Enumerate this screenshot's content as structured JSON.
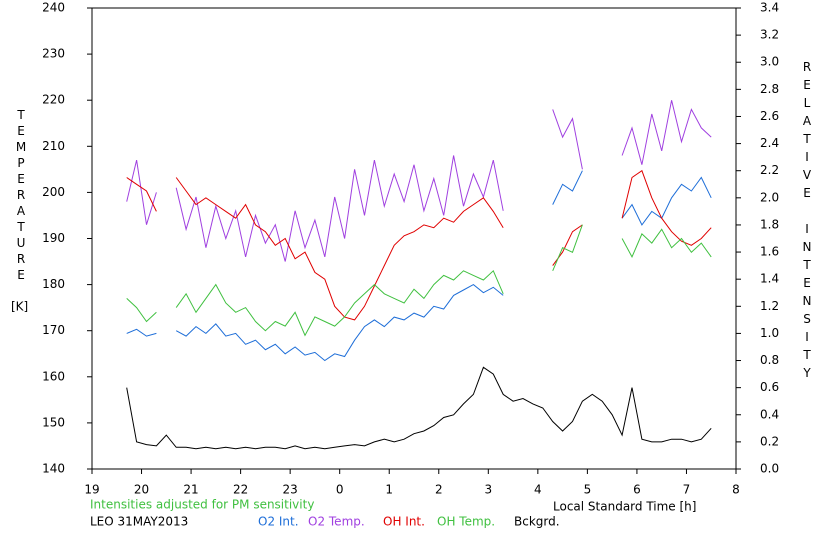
{
  "chart_data": {
    "type": "line",
    "y_label": "TEMPERATURE",
    "y_label_unit": "[K]",
    "y2_label": "RELATIVE INTENSITY",
    "x_label": "Local Standard Time [h]",
    "annotations": [
      "Intensities adjusted for PM sensitivity",
      "LEO 31MAY2013"
    ],
    "xlim": [
      19,
      32
    ],
    "xticks": [
      19,
      20,
      21,
      22,
      23,
      {
        "value": 24,
        "label": "0"
      },
      {
        "value": 25,
        "label": "1"
      },
      {
        "value": 26,
        "label": "2"
      },
      {
        "value": 27,
        "label": "3"
      },
      {
        "value": 28,
        "label": "4"
      },
      {
        "value": 29,
        "label": "5"
      },
      {
        "value": 30,
        "label": "6"
      },
      {
        "value": 31,
        "label": "7"
      },
      {
        "value": 32,
        "label": "8"
      }
    ],
    "ylim": [
      140,
      240
    ],
    "yticks": [
      140,
      150,
      160,
      170,
      180,
      190,
      200,
      210,
      220,
      230,
      240
    ],
    "y2lim": [
      0,
      3.4
    ],
    "y2ticks": [
      {
        "value": 0,
        "label": "0.0"
      },
      0.2,
      0.4,
      0.6,
      0.8,
      {
        "value": 1,
        "label": "1.0"
      },
      1.2,
      1.4,
      1.6,
      1.8,
      {
        "value": 2,
        "label": "2.0"
      },
      2.2,
      2.4,
      2.6,
      2.8,
      {
        "value": 3,
        "label": "3.0"
      },
      3.2,
      3.4
    ],
    "x": [
      19.7,
      19.9,
      20.1,
      20.3,
      20.5,
      20.7,
      20.9,
      21.1,
      21.3,
      21.5,
      21.7,
      21.9,
      22.1,
      22.3,
      22.5,
      22.7,
      22.9,
      23.1,
      23.3,
      23.5,
      23.7,
      23.9,
      24.1,
      24.3,
      24.5,
      24.7,
      24.9,
      25.1,
      25.3,
      25.5,
      25.7,
      25.9,
      26.1,
      26.3,
      26.5,
      26.7,
      26.9,
      27.1,
      27.3,
      27.5,
      27.7,
      27.9,
      28.1,
      28.3,
      28.5,
      28.7,
      28.9,
      29.1,
      29.3,
      29.5,
      29.7,
      29.9,
      30.1,
      30.3,
      30.5,
      30.7,
      30.9,
      31.1,
      31.3,
      31.5
    ],
    "series": [
      {
        "name": "O2 Int.",
        "color": "#1e6ed8",
        "axis": "y2",
        "values": [
          1.0,
          1.03,
          0.98,
          1.0,
          null,
          1.02,
          0.98,
          1.05,
          1.0,
          1.07,
          0.98,
          1.0,
          0.92,
          0.95,
          0.88,
          0.92,
          0.85,
          0.9,
          0.84,
          0.86,
          0.8,
          0.85,
          0.83,
          0.95,
          1.05,
          1.1,
          1.05,
          1.12,
          1.1,
          1.15,
          1.12,
          1.2,
          1.18,
          1.28,
          1.32,
          1.36,
          1.3,
          1.34,
          1.28,
          null,
          null,
          null,
          null,
          1.95,
          2.1,
          2.05,
          2.2,
          null,
          null,
          null,
          1.85,
          1.95,
          1.8,
          1.9,
          1.85,
          2.0,
          2.1,
          2.05,
          2.15,
          2.0
        ]
      },
      {
        "name": "O2 Temp.",
        "color": "#a040e0",
        "values": [
          198,
          207,
          193,
          200,
          null,
          201,
          192,
          199,
          188,
          197,
          190,
          196,
          186,
          195,
          189,
          193,
          185,
          196,
          188,
          194,
          186,
          199,
          190,
          205,
          195,
          207,
          197,
          204,
          198,
          206,
          196,
          203,
          195,
          208,
          197,
          204,
          199,
          207,
          196,
          null,
          null,
          null,
          null,
          218,
          212,
          216,
          205,
          null,
          null,
          null,
          208,
          214,
          206,
          217,
          209,
          220,
          211,
          218,
          214,
          212
        ]
      },
      {
        "name": "OH Int.",
        "color": "#e00000",
        "axis": "y2",
        "values": [
          2.15,
          2.1,
          2.05,
          1.9,
          null,
          2.15,
          2.05,
          1.95,
          2.0,
          1.95,
          1.9,
          1.85,
          1.95,
          1.8,
          1.75,
          1.65,
          1.7,
          1.55,
          1.6,
          1.45,
          1.4,
          1.2,
          1.12,
          1.1,
          1.2,
          1.35,
          1.5,
          1.65,
          1.72,
          1.75,
          1.8,
          1.78,
          1.85,
          1.82,
          1.9,
          1.95,
          2.0,
          1.9,
          1.78,
          null,
          null,
          null,
          null,
          1.5,
          1.6,
          1.75,
          1.8,
          null,
          null,
          null,
          1.85,
          2.15,
          2.2,
          2.0,
          1.85,
          1.75,
          1.68,
          1.65,
          1.7,
          1.78
        ]
      },
      {
        "name": "OH Temp.",
        "color": "#40c040",
        "values": [
          177,
          175,
          172,
          174,
          null,
          175,
          178,
          174,
          177,
          180,
          176,
          174,
          175,
          172,
          170,
          172,
          171,
          174,
          169,
          173,
          172,
          171,
          173,
          176,
          178,
          180,
          178,
          177,
          176,
          179,
          177,
          180,
          182,
          181,
          183,
          182,
          181,
          183,
          178,
          null,
          null,
          null,
          null,
          183,
          188,
          187,
          193,
          null,
          null,
          null,
          190,
          186,
          191,
          189,
          192,
          188,
          190,
          187,
          189,
          186
        ]
      },
      {
        "name": "Bckgrd.",
        "color": "#000000",
        "axis": "y2",
        "values": [
          0.6,
          0.2,
          0.18,
          0.17,
          0.25,
          0.16,
          0.16,
          0.15,
          0.16,
          0.15,
          0.16,
          0.15,
          0.16,
          0.15,
          0.16,
          0.16,
          0.15,
          0.17,
          0.15,
          0.16,
          0.15,
          0.16,
          0.17,
          0.18,
          0.17,
          0.2,
          0.22,
          0.2,
          0.22,
          0.26,
          0.28,
          0.32,
          0.38,
          0.4,
          0.48,
          0.55,
          0.75,
          0.7,
          0.55,
          0.5,
          0.52,
          0.48,
          0.45,
          0.35,
          0.28,
          0.35,
          0.5,
          0.55,
          0.5,
          0.4,
          0.25,
          0.6,
          0.22,
          0.2,
          0.2,
          0.22,
          0.22,
          0.2,
          0.22,
          0.3
        ]
      }
    ]
  }
}
